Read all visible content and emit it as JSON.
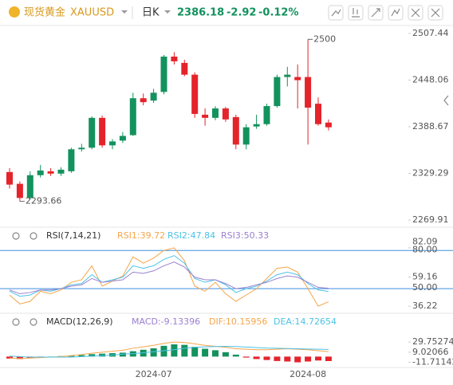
{
  "header": {
    "name": "现货黄金",
    "symbol": "XAUUSD",
    "period": "日K",
    "price": "2386.18",
    "change": "-2.92",
    "change_pct": "-0.12%"
  },
  "chart_data": [
    {
      "type": "candlestick",
      "up_color": "#13925e",
      "down_color": "#e5232b",
      "categories": [
        null,
        null,
        null,
        null,
        null,
        null,
        null,
        null,
        null,
        null,
        null,
        null,
        null,
        null,
        "2024-07",
        null,
        null,
        null,
        null,
        null,
        null,
        null,
        null,
        null,
        null,
        null,
        null,
        null,
        null,
        "2024-08",
        null,
        null
      ],
      "open": [
        2331,
        2316,
        2298,
        2327,
        2332,
        2329,
        2332,
        2360,
        2362,
        2400,
        2365,
        2371,
        2378,
        2425,
        2422,
        2433,
        2478,
        2470,
        2455,
        2404,
        2400,
        2412,
        2401,
        2366,
        2389,
        2392,
        2415,
        2452,
        2452,
        2452,
        2418,
        2394
      ],
      "high": [
        2336,
        2319,
        2332,
        2340,
        2336,
        2337,
        2362,
        2367,
        2402,
        2403,
        2373,
        2382,
        2432,
        2431,
        2437,
        2480,
        2483.69,
        2474,
        2458,
        2412,
        2415,
        2414,
        2404,
        2392,
        2404,
        2418,
        2455,
        2465,
        2468,
        2500,
        2426,
        2398
      ],
      "low": [
        2310,
        2293.66,
        2296,
        2324,
        2326,
        2326,
        2330,
        2357,
        2360,
        2362,
        2360,
        2368,
        2377,
        2416,
        2419,
        2430,
        2468,
        2453,
        2400,
        2390,
        2397,
        2395,
        2360,
        2360,
        2386,
        2390,
        2413,
        2440,
        2412,
        2366,
        2390,
        2384
      ],
      "close": [
        2315,
        2298,
        2327,
        2333,
        2329,
        2334,
        2360,
        2362,
        2400,
        2365,
        2370,
        2377,
        2425,
        2420,
        2432,
        2478,
        2472,
        2455,
        2405,
        2400,
        2412,
        2398,
        2366,
        2388,
        2392,
        2415,
        2452,
        2455,
        2448,
        2413,
        2392,
        2388
      ],
      "ylim": [
        2260.8,
        2517.6
      ],
      "yticks": [
        2269.91,
        2329.29,
        2388.67,
        2448.06,
        2507.44
      ]
    },
    {
      "type": "line",
      "title": "RSI(7,14,21)",
      "series": [
        {
          "name": "RSI1:39.72",
          "color": "#f5a54a",
          "values": [
            45,
            38,
            40,
            48,
            46,
            49,
            55,
            57,
            68,
            52,
            56,
            60,
            75,
            70,
            74,
            80,
            82.09,
            72,
            52,
            48,
            55,
            46,
            40,
            45,
            50,
            58,
            66,
            67,
            63,
            50,
            36.22,
            39.72
          ]
        },
        {
          "name": "RSI2:47.84",
          "color": "#4cc2e6",
          "values": [
            48,
            44,
            45,
            49,
            48,
            50,
            53,
            54,
            61,
            55,
            57,
            59,
            68,
            66,
            68,
            73,
            76,
            70,
            58,
            55,
            57,
            53,
            47,
            50,
            52,
            56,
            61,
            63,
            61,
            54,
            49,
            47.84
          ]
        },
        {
          "name": "RSI3:50.33",
          "color": "#9b80d0",
          "values": [
            49,
            46,
            47,
            49,
            49,
            50,
            52,
            53,
            58,
            55,
            56,
            57,
            63,
            62,
            64,
            68,
            71,
            67,
            59,
            57,
            57,
            54,
            50,
            51,
            53,
            55,
            58,
            60,
            59,
            55,
            51,
            50.33
          ]
        }
      ],
      "levels": [
        {
          "value": 80,
          "label": "80.00"
        },
        {
          "value": 50,
          "label": "50.00"
        }
      ],
      "level_color": "#3d8fe0",
      "ylim": [
        31.3,
        87.05
      ],
      "yticks": [
        36.22,
        59.16,
        82.09
      ]
    },
    {
      "type": "bar",
      "title": "MACD(12,26,9)",
      "name": "MACD:-9.13396",
      "name_color": "#9b80d0",
      "up_color": "#13925e",
      "down_color": "#e5232b",
      "values": [
        -4,
        -5,
        -3,
        -1,
        0,
        1,
        2,
        3,
        5,
        6,
        7,
        8,
        11,
        14,
        17,
        22,
        25,
        24,
        20,
        16,
        13,
        9,
        4,
        -2,
        -5,
        -7,
        -9,
        -10,
        -11.71,
        -10,
        -8,
        -9.13
      ],
      "series": [
        {
          "name": "DIF:10.15956",
          "color": "#f5a54a",
          "values": [
            -3,
            -4,
            -3,
            -2,
            -1,
            0,
            2,
            4,
            7,
            9,
            11,
            13,
            17,
            20,
            23,
            27,
            29.75,
            29,
            26,
            23,
            21,
            19,
            16,
            15,
            14,
            14,
            15,
            16,
            15,
            14,
            12,
            10.15956
          ]
        },
        {
          "name": "DEA:14.72654",
          "color": "#4cc2e6",
          "values": [
            1,
            0,
            -1,
            -1,
            -1,
            -1,
            -1,
            0,
            1,
            2,
            3,
            5,
            6,
            8,
            10,
            12,
            14,
            17,
            19,
            20,
            20.5,
            21,
            20.5,
            19.5,
            18.5,
            17.5,
            17,
            16.5,
            16,
            15.5,
            15,
            14.72654
          ]
        }
      ],
      "ylim": [
        -20.6,
        60.9
      ],
      "yticks": [
        -11.71142,
        9.02066,
        29.75274
      ]
    }
  ]
}
